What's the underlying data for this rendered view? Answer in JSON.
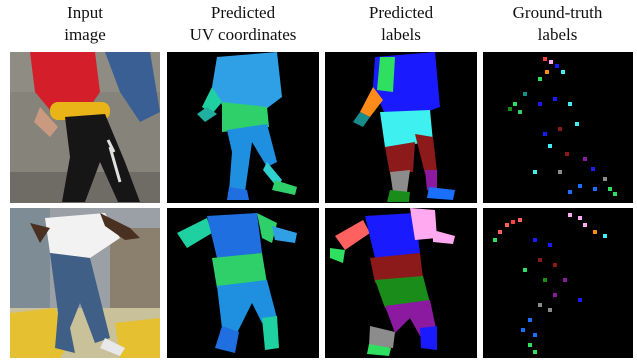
{
  "headers": {
    "input": {
      "line1": "Input",
      "line2": "image"
    },
    "uv": {
      "line1": "Predicted",
      "line2": "UV coordinates"
    },
    "labels": {
      "line1": "Predicted",
      "line2": "labels"
    },
    "gt": {
      "line1": "Ground-truth",
      "line2": "labels"
    }
  },
  "colors": {
    "panel_background": "#000000",
    "uv_green": "#2fd06a",
    "uv_blue": "#1f6fe0",
    "label_blue": "#1a1aff",
    "label_cyan": "#3ff0f0",
    "label_maroon": "#8c1a1a",
    "label_orange": "#ff8c1a",
    "label_pink": "#ffaaf0",
    "label_gray": "#8c8c8c",
    "label_purple": "#8c1aa0",
    "label_teal": "#1a8c8c"
  }
}
